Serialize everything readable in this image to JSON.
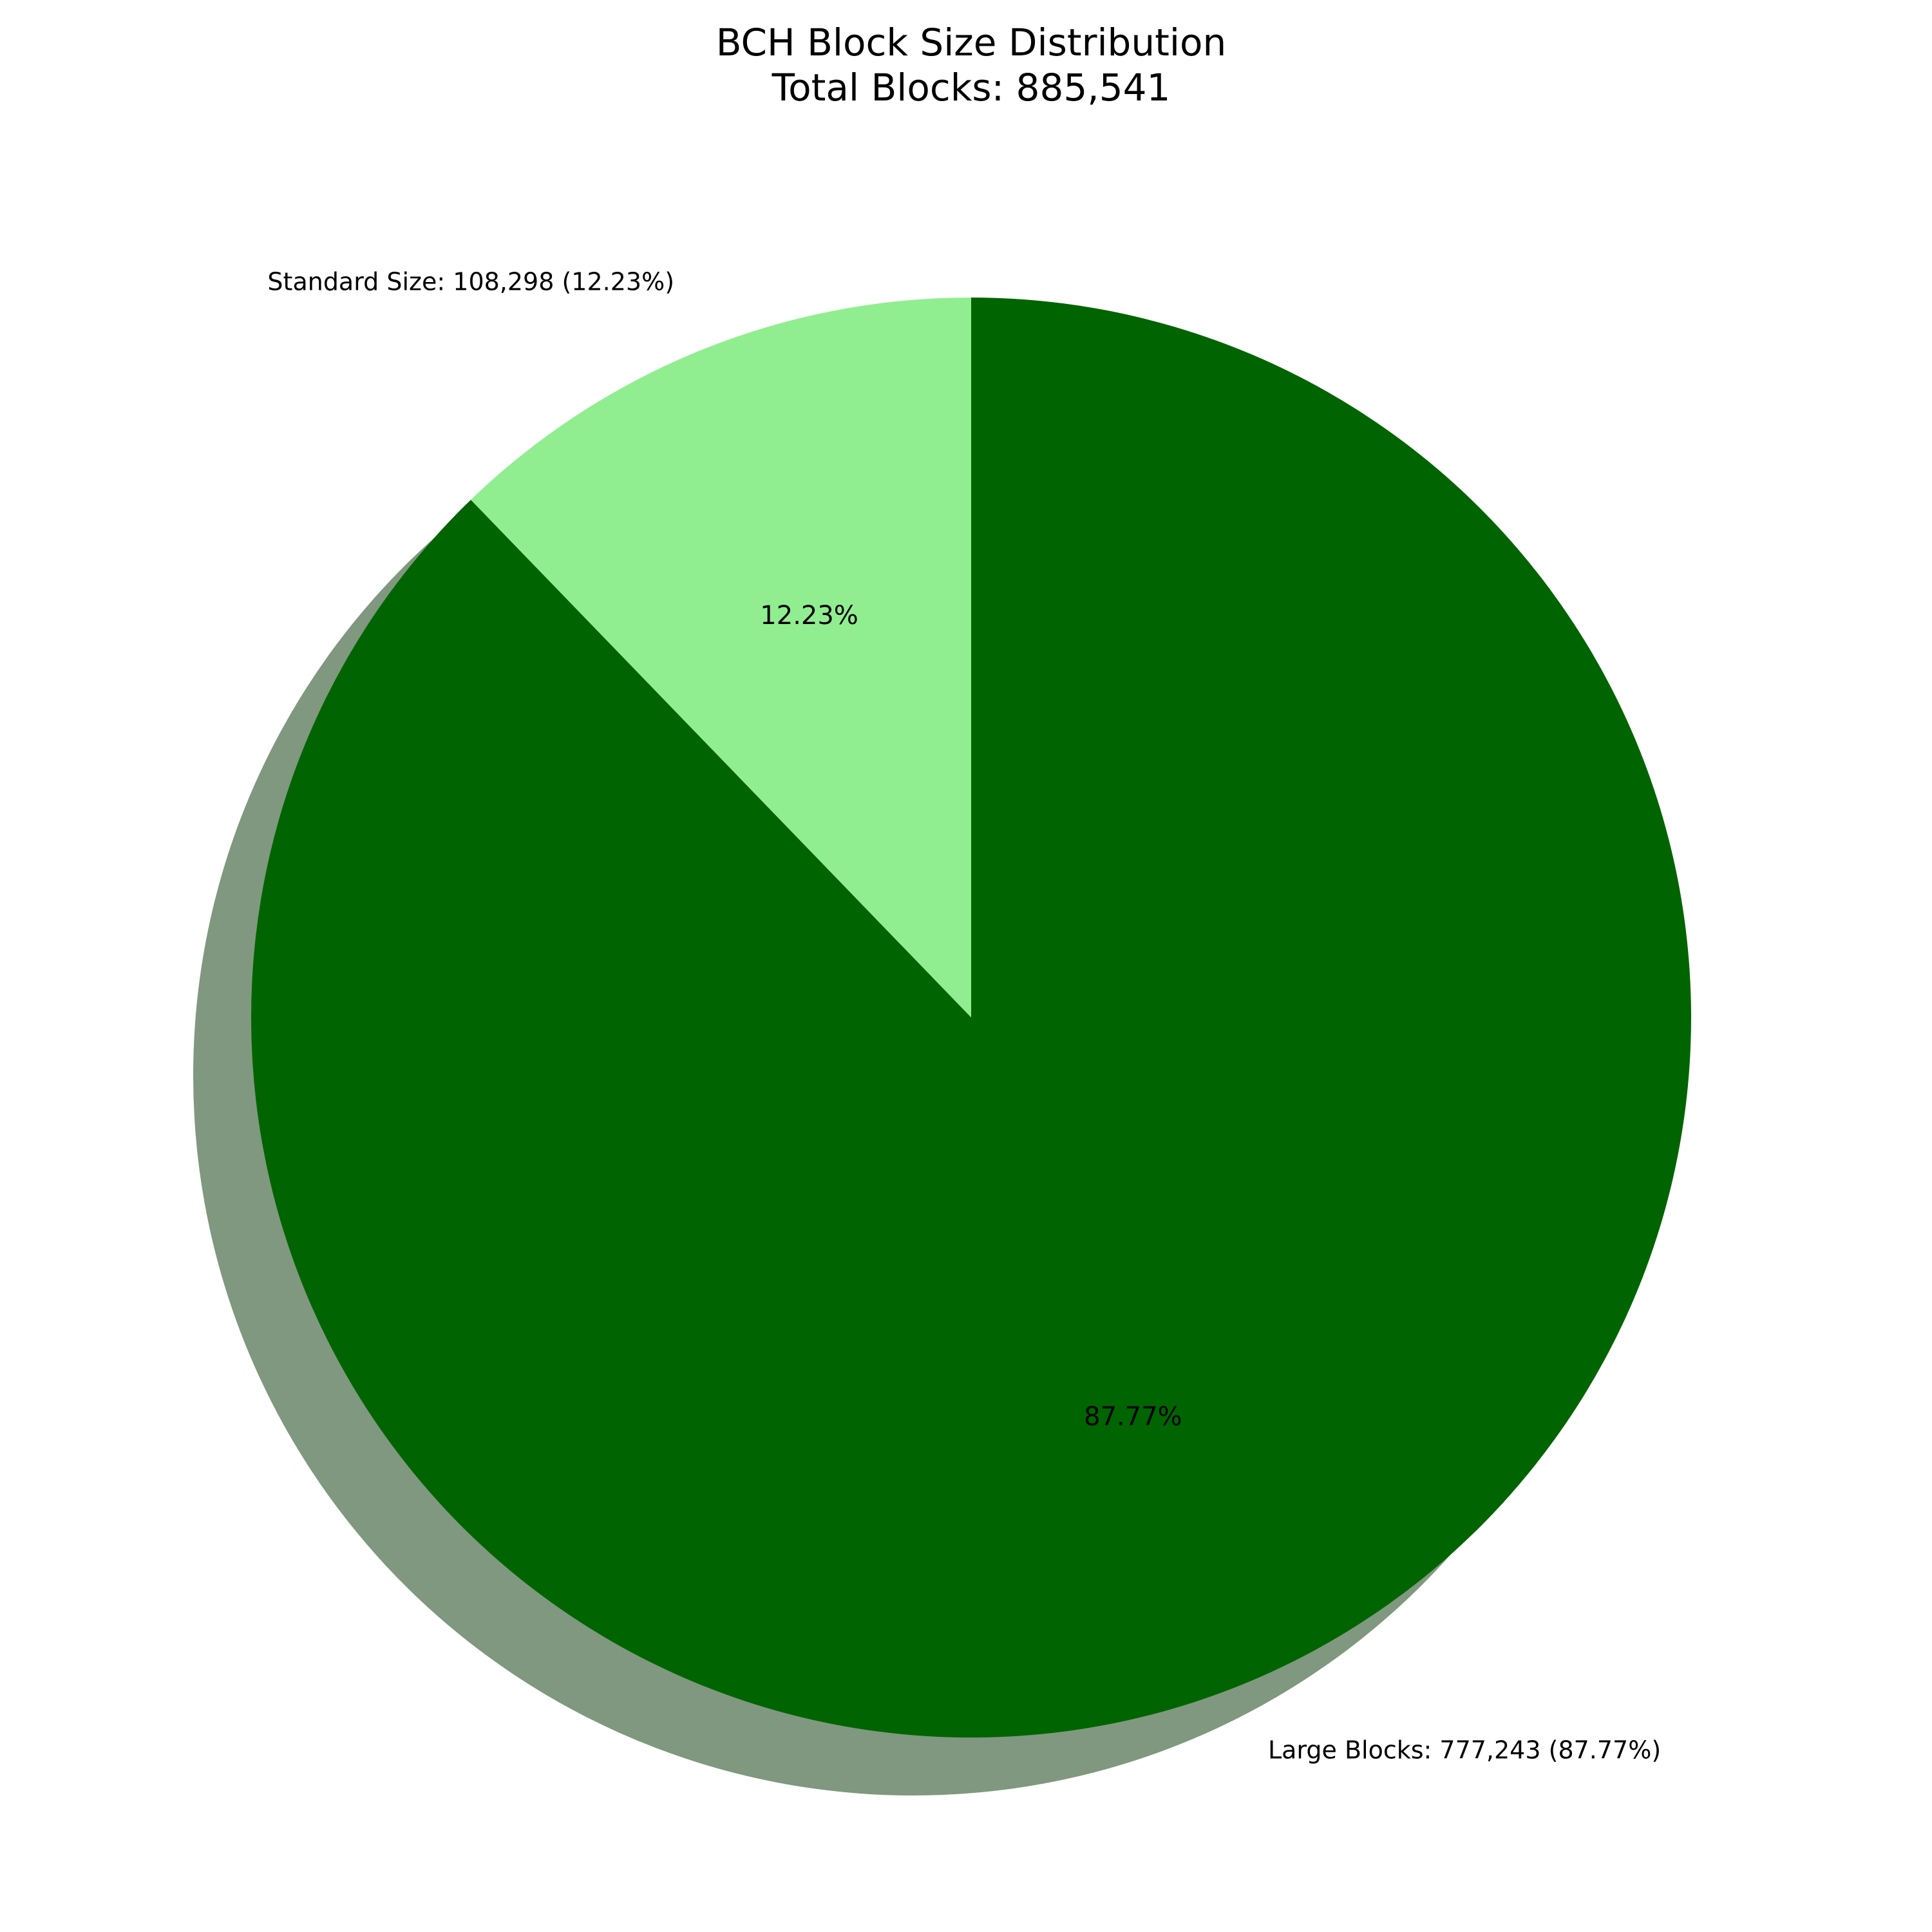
{
  "chart_data": {
    "type": "pie",
    "title": "BCH Block Size Distribution",
    "subtitle": "Total Blocks: 885,541",
    "start_angle_deg": 90,
    "direction": "counterclockwise",
    "shadow": true,
    "slices": [
      {
        "name": "Standard Size",
        "value": 108298,
        "percent": 12.23,
        "label": "Standard Size: 108,298 (12.23%)",
        "pct_label": "12.23%",
        "color": "#90ee90"
      },
      {
        "name": "Large Blocks",
        "value": 777243,
        "percent": 87.77,
        "label": "Large Blocks: 777,243 (87.77%)",
        "pct_label": "87.77%",
        "color": "#006400"
      }
    ]
  }
}
